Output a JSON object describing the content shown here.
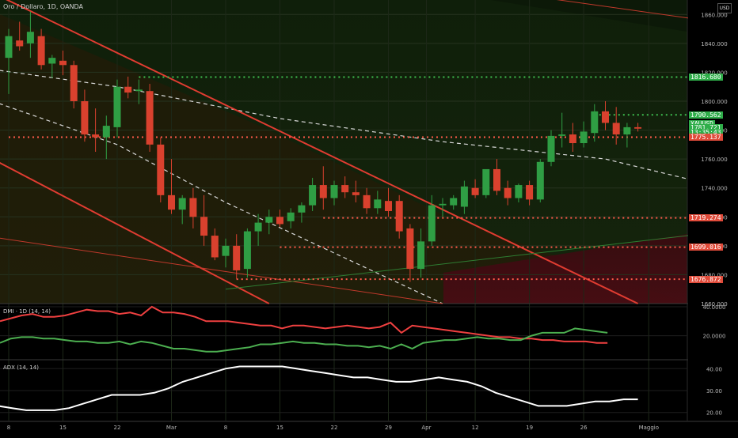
{
  "header": {
    "symbol_title": "Oro / Dollaro, 1D, OANDA",
    "currency_button": "USD"
  },
  "colors": {
    "up": "#2f9e44",
    "down": "#d9412e",
    "level": "#ff5a4a",
    "resistance_green": "#3fbf4f",
    "price_tag": "#2fae4a",
    "dmi_plus": "#4caf50",
    "dmi_minus": "#ef4040",
    "adx": "#ffffff"
  },
  "price_tags": [
    {
      "label": "1816.680",
      "color": "#2fae4a",
      "value": 1816.68
    },
    {
      "label": "1790.562",
      "color": "#2fae4a",
      "value": 1790.56
    },
    {
      "label": "XAUUSD",
      "color": "#2fae4a",
      "value": 1784.5
    },
    {
      "label": "1781.721",
      "color": "#2fae4a",
      "value": 1781.72
    },
    {
      "label": "13:35:43",
      "color": "#2fae4a",
      "value": 1778.6
    },
    {
      "label": "1775.137",
      "color": "#e04b3a",
      "value": 1775.14
    },
    {
      "label": "1719.274",
      "color": "#e04b3a",
      "value": 1719.27
    },
    {
      "label": "1699.016",
      "color": "#e04b3a",
      "value": 1699.02
    },
    {
      "label": "1676.872",
      "color": "#e04b3a",
      "value": 1676.87
    }
  ],
  "panes": {
    "dmi_label": "DMI · 1D (14, 14)",
    "adx_label": "ADX (14, 14)"
  },
  "chart_data": [
    {
      "type": "candlestick",
      "title": "Oro / Dollaro, 1D, OANDA",
      "ylim": [
        1660,
        1870
      ],
      "y_ticks": [
        "1860.000",
        "1840.000",
        "1820.000",
        "1800.000",
        "1780.000",
        "1760.000",
        "1740.000",
        "1720.000",
        "1700.000",
        "1680.000",
        "1660.000"
      ],
      "y_tick_values": [
        1860,
        1840,
        1820,
        1800,
        1780,
        1760,
        1740,
        1720,
        1700,
        1680,
        1660
      ],
      "x_ticks": [
        "8",
        "15",
        "22",
        "Mar",
        "8",
        "15",
        "22",
        "29",
        "Apr",
        "12",
        "19",
        "26",
        "Maggio"
      ],
      "x_tick_index": [
        0,
        5,
        10,
        15,
        20,
        25,
        30,
        35,
        38.5,
        43,
        48,
        53,
        59
      ],
      "candles": [
        {
          "o": 1830,
          "h": 1850,
          "l": 1805,
          "c": 1845
        },
        {
          "o": 1842,
          "h": 1855,
          "l": 1835,
          "c": 1838
        },
        {
          "o": 1840,
          "h": 1862,
          "l": 1830,
          "c": 1848
        },
        {
          "o": 1845,
          "h": 1850,
          "l": 1822,
          "c": 1825
        },
        {
          "o": 1826,
          "h": 1832,
          "l": 1816,
          "c": 1830
        },
        {
          "o": 1828,
          "h": 1835,
          "l": 1818,
          "c": 1825
        },
        {
          "o": 1825,
          "h": 1828,
          "l": 1795,
          "c": 1800
        },
        {
          "o": 1800,
          "h": 1808,
          "l": 1772,
          "c": 1777
        },
        {
          "o": 1777,
          "h": 1795,
          "l": 1765,
          "c": 1775
        },
        {
          "o": 1775,
          "h": 1790,
          "l": 1760,
          "c": 1783
        },
        {
          "o": 1782,
          "h": 1815,
          "l": 1775,
          "c": 1810
        },
        {
          "o": 1810,
          "h": 1817,
          "l": 1802,
          "c": 1806
        },
        {
          "o": 1807,
          "h": 1815,
          "l": 1798,
          "c": 1808
        },
        {
          "o": 1807,
          "h": 1812,
          "l": 1765,
          "c": 1770
        },
        {
          "o": 1770,
          "h": 1775,
          "l": 1730,
          "c": 1735
        },
        {
          "o": 1735,
          "h": 1760,
          "l": 1722,
          "c": 1725
        },
        {
          "o": 1725,
          "h": 1735,
          "l": 1715,
          "c": 1733
        },
        {
          "o": 1733,
          "h": 1740,
          "l": 1712,
          "c": 1720
        },
        {
          "o": 1720,
          "h": 1735,
          "l": 1700,
          "c": 1707
        },
        {
          "o": 1707,
          "h": 1712,
          "l": 1690,
          "c": 1692
        },
        {
          "o": 1693,
          "h": 1705,
          "l": 1685,
          "c": 1700
        },
        {
          "o": 1700,
          "h": 1708,
          "l": 1677,
          "c": 1683
        },
        {
          "o": 1684,
          "h": 1712,
          "l": 1678,
          "c": 1710
        },
        {
          "o": 1710,
          "h": 1722,
          "l": 1700,
          "c": 1716
        },
        {
          "o": 1716,
          "h": 1725,
          "l": 1708,
          "c": 1720
        },
        {
          "o": 1720,
          "h": 1725,
          "l": 1713,
          "c": 1715
        },
        {
          "o": 1717,
          "h": 1726,
          "l": 1712,
          "c": 1723
        },
        {
          "o": 1723,
          "h": 1730,
          "l": 1716,
          "c": 1728
        },
        {
          "o": 1728,
          "h": 1747,
          "l": 1724,
          "c": 1742
        },
        {
          "o": 1742,
          "h": 1755,
          "l": 1725,
          "c": 1733
        },
        {
          "o": 1733,
          "h": 1745,
          "l": 1728,
          "c": 1742
        },
        {
          "o": 1742,
          "h": 1748,
          "l": 1733,
          "c": 1737
        },
        {
          "o": 1737,
          "h": 1745,
          "l": 1730,
          "c": 1735
        },
        {
          "o": 1735,
          "h": 1740,
          "l": 1722,
          "c": 1726
        },
        {
          "o": 1726,
          "h": 1738,
          "l": 1722,
          "c": 1732
        },
        {
          "o": 1731,
          "h": 1740,
          "l": 1720,
          "c": 1724
        },
        {
          "o": 1731,
          "h": 1735,
          "l": 1705,
          "c": 1710
        },
        {
          "o": 1712,
          "h": 1715,
          "l": 1675,
          "c": 1684
        },
        {
          "o": 1684,
          "h": 1712,
          "l": 1678,
          "c": 1703
        },
        {
          "o": 1703,
          "h": 1735,
          "l": 1700,
          "c": 1728
        },
        {
          "o": 1728,
          "h": 1733,
          "l": 1720,
          "c": 1729
        },
        {
          "o": 1728,
          "h": 1735,
          "l": 1725,
          "c": 1733
        },
        {
          "o": 1727,
          "h": 1745,
          "l": 1722,
          "c": 1741
        },
        {
          "o": 1740,
          "h": 1746,
          "l": 1733,
          "c": 1735
        },
        {
          "o": 1735,
          "h": 1752,
          "l": 1733,
          "c": 1753
        },
        {
          "o": 1753,
          "h": 1760,
          "l": 1735,
          "c": 1738
        },
        {
          "o": 1740,
          "h": 1745,
          "l": 1728,
          "c": 1733
        },
        {
          "o": 1733,
          "h": 1743,
          "l": 1730,
          "c": 1742
        },
        {
          "o": 1742,
          "h": 1745,
          "l": 1728,
          "c": 1732
        },
        {
          "o": 1732,
          "h": 1760,
          "l": 1730,
          "c": 1758
        },
        {
          "o": 1758,
          "h": 1780,
          "l": 1755,
          "c": 1776
        },
        {
          "o": 1776,
          "h": 1792,
          "l": 1768,
          "c": 1777
        },
        {
          "o": 1777,
          "h": 1785,
          "l": 1765,
          "c": 1771
        },
        {
          "o": 1771,
          "h": 1786,
          "l": 1768,
          "c": 1779
        },
        {
          "o": 1778,
          "h": 1798,
          "l": 1772,
          "c": 1793
        },
        {
          "o": 1793,
          "h": 1800,
          "l": 1780,
          "c": 1785
        },
        {
          "o": 1785,
          "h": 1796,
          "l": 1770,
          "c": 1777
        },
        {
          "o": 1777,
          "h": 1785,
          "l": 1768,
          "c": 1782
        },
        {
          "o": 1782,
          "h": 1785,
          "l": 1779,
          "c": 1781
        }
      ],
      "horizontal_levels": [
        {
          "value": 1816.68,
          "from": 12,
          "style": "dotted",
          "color": "#3fbf4f"
        },
        {
          "value": 1790.56,
          "from": 54,
          "style": "dotted",
          "color": "#3fbf4f"
        },
        {
          "value": 1775.14,
          "from": 0,
          "style": "dotted",
          "color": "#ff5a4a"
        },
        {
          "value": 1719.27,
          "from": 29,
          "style": "dotted",
          "color": "#ff5a4a"
        },
        {
          "value": 1699.02,
          "from": 25,
          "style": "dotted",
          "color": "#ff5a4a"
        },
        {
          "value": 1676.87,
          "from": 21,
          "style": "dotted",
          "color": "#ff5a4a"
        }
      ],
      "trendlines": [
        {
          "x1": -1.5,
          "y1": 1875,
          "x2": 58,
          "y2": 1660,
          "color": "#e03c31",
          "width": 2
        },
        {
          "x1": -1.5,
          "y1": 1760,
          "x2": 24,
          "y2": 1660,
          "color": "#e03c31",
          "width": 2
        },
        {
          "x1": -1.5,
          "y1": 1706,
          "x2": 40,
          "y2": 1660,
          "color": "#c0392b",
          "width": 1
        },
        {
          "x1": 46,
          "y1": 1875,
          "x2": 66,
          "y2": 1854,
          "color": "#c0392b",
          "width": 1
        },
        {
          "x1": 20,
          "y1": 1670,
          "x2": 66,
          "y2": 1710,
          "color": "#2e7d32",
          "width": 1
        }
      ],
      "dashed_curves": [
        {
          "points": [
            [
              -1.5,
              1822
            ],
            [
              10,
              1810
            ],
            [
              25,
              1788
            ],
            [
              40,
              1772
            ],
            [
              55,
              1760
            ],
            [
              66,
              1740
            ]
          ],
          "color": "#d8d8d8"
        },
        {
          "points": [
            [
              -1.5,
              1800
            ],
            [
              10,
              1770
            ],
            [
              20,
              1730
            ],
            [
              30,
              1695
            ],
            [
              40,
              1660
            ]
          ],
          "color": "#d8d8d8"
        }
      ]
    },
    {
      "type": "line",
      "title": "DMI · 1D (14, 14)",
      "ylim": [
        5,
        40
      ],
      "y_ticks": [
        "40.0000",
        "20.0000"
      ],
      "y_tick_values": [
        40,
        20
      ],
      "series": [
        {
          "name": "",
          "color": "#ef4040",
          "values": [
            30,
            32,
            34,
            35,
            33,
            33,
            34,
            36,
            38,
            37,
            37,
            35,
            36,
            34,
            40,
            36,
            36,
            35,
            33,
            30,
            30,
            30,
            29,
            28,
            27,
            27,
            25,
            27,
            27,
            26,
            25,
            26,
            27,
            26,
            25,
            26,
            29,
            22,
            27,
            26,
            25,
            24,
            23,
            22,
            21,
            20,
            19,
            19,
            18,
            18,
            17,
            17,
            16,
            16,
            16,
            15,
            15
          ]
        },
        {
          "name": "",
          "color": "#4caf50",
          "values": [
            15,
            18,
            19,
            19,
            18,
            18,
            17,
            16,
            16,
            15,
            15,
            16,
            14,
            16,
            15,
            13,
            11,
            11,
            10,
            9,
            9,
            10,
            11,
            12,
            14,
            14,
            15,
            16,
            15,
            15,
            14,
            14,
            13,
            13,
            12,
            13,
            11,
            14,
            11,
            15,
            16,
            17,
            17,
            18,
            19,
            18,
            18,
            17,
            17,
            20,
            22,
            22,
            22,
            25,
            24,
            23,
            22
          ]
        }
      ]
    },
    {
      "type": "line",
      "title": "ADX (14, 14)",
      "ylim": [
        17,
        43
      ],
      "y_ticks": [
        "40.00",
        "30.00",
        "20.00"
      ],
      "y_tick_values": [
        40,
        30,
        20
      ],
      "series": [
        {
          "name": "",
          "color": "#ffffff",
          "values": [
            23,
            22,
            21,
            21,
            21,
            22,
            24,
            26,
            28,
            28,
            28,
            29,
            31,
            34,
            36,
            38,
            40,
            41,
            41,
            41,
            41,
            40,
            39,
            38,
            37,
            36,
            36,
            35,
            34,
            34,
            35,
            36,
            35,
            34,
            32,
            29,
            27,
            25,
            23,
            23,
            23,
            24,
            25,
            25,
            26,
            26
          ]
        }
      ]
    }
  ]
}
